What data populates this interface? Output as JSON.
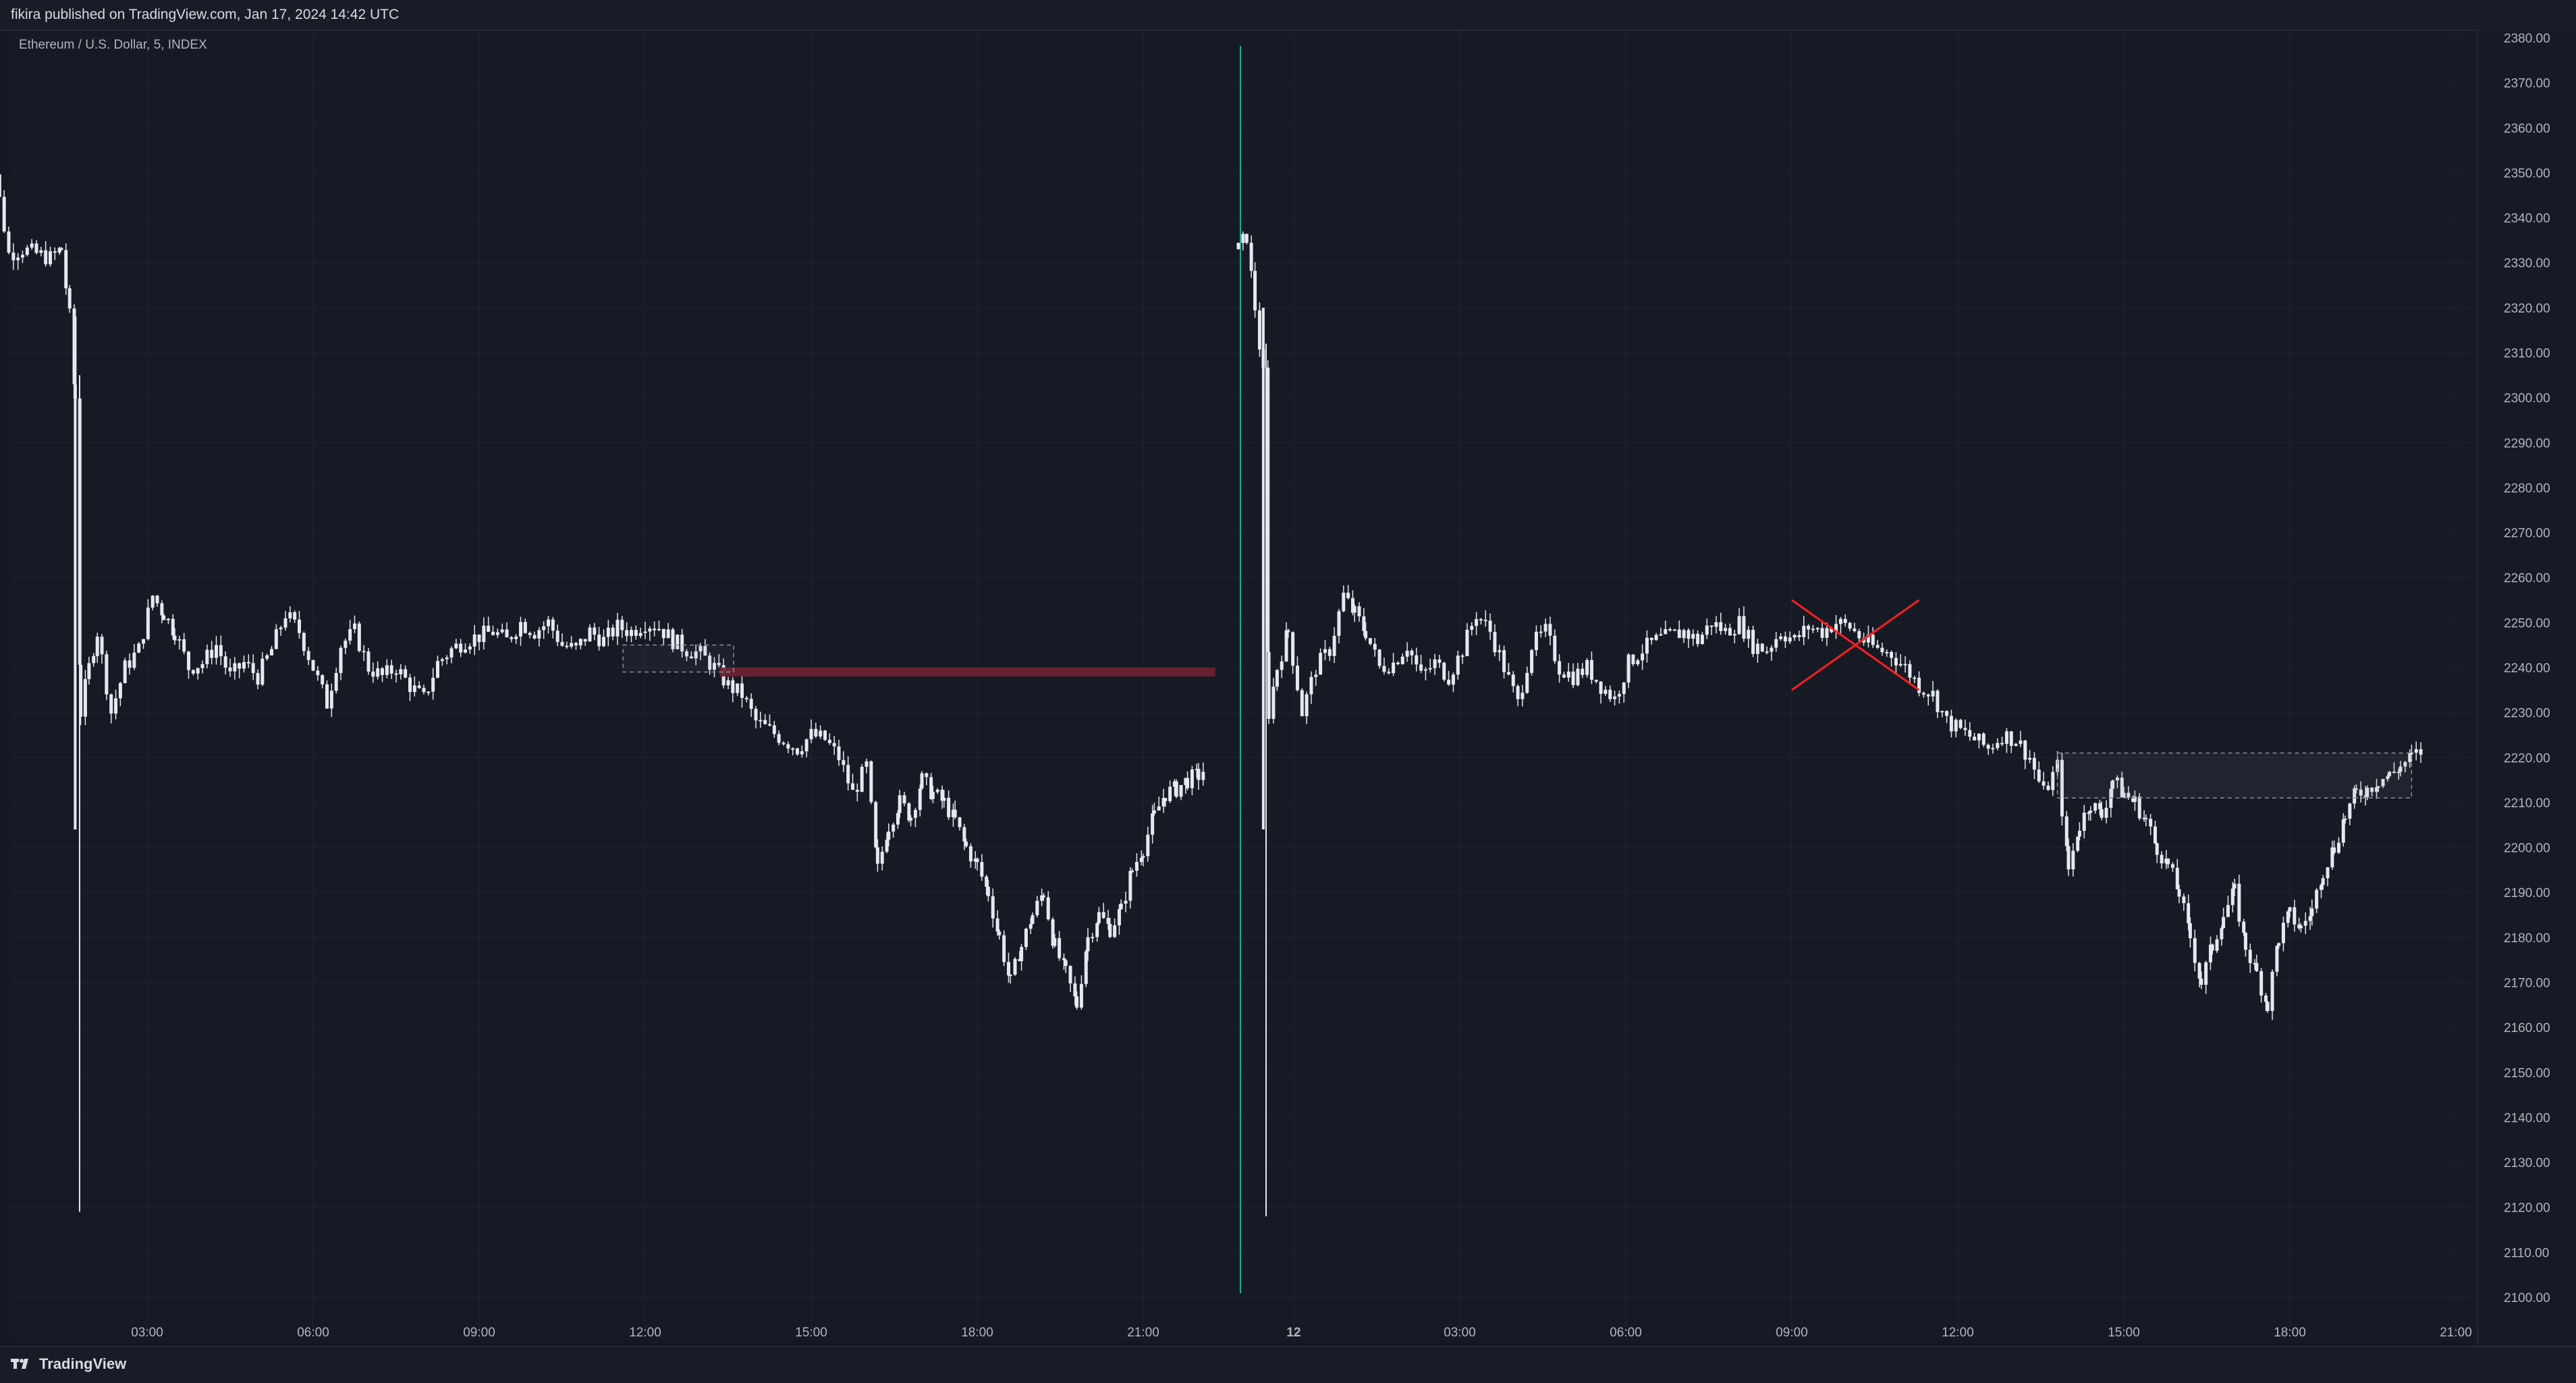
{
  "header": {
    "publish_text": "fikira published on TradingView.com, Jan 17, 2024 14:42 UTC"
  },
  "symbol": {
    "label": "Ethereum / U.S. Dollar, 5, INDEX"
  },
  "footer": {
    "brand": "TradingView"
  },
  "colors": {
    "background": "#161a25",
    "candle": "#e6e8ee",
    "grid": "#1f2430",
    "separator": "#22ab94",
    "zone": "#6b2230",
    "cross": "#ff1f1f",
    "box_border": "#8a8e99"
  },
  "chart_data": {
    "type": "candlestick",
    "title": "",
    "y_axis": {
      "min": 2100,
      "max": 2380,
      "ticks": [
        "2100.00",
        "2110.00",
        "2120.00",
        "2130.00",
        "2140.00",
        "2150.00",
        "2160.00",
        "2170.00",
        "2180.00",
        "2190.00",
        "2200.00",
        "2210.00",
        "2220.00",
        "2230.00",
        "2240.00",
        "2250.00",
        "2260.00",
        "2270.00",
        "2280.00",
        "2290.00",
        "2300.00",
        "2310.00",
        "2320.00",
        "2330.00",
        "2340.00",
        "2350.00",
        "2360.00",
        "2370.00",
        "2380.00"
      ]
    },
    "grid": true,
    "panels": [
      {
        "time_labels": [
          {
            "h": 3,
            "label": "03:00"
          },
          {
            "h": 6,
            "label": "06:00"
          },
          {
            "h": 9,
            "label": "09:00"
          },
          {
            "h": 12,
            "label": "12:00"
          },
          {
            "h": 15,
            "label": "15:00"
          },
          {
            "h": 18,
            "label": "18:00"
          },
          {
            "h": 21,
            "label": "21:00"
          }
        ],
        "series": [
          {
            "h": 0.0,
            "v": 2352
          },
          {
            "h": 0.25,
            "v": 2350
          },
          {
            "h": 0.5,
            "v": 2332
          },
          {
            "h": 0.75,
            "v": 2333
          },
          {
            "h": 1.0,
            "v": 2332
          },
          {
            "h": 1.25,
            "v": 2331
          },
          {
            "h": 1.45,
            "v": 2333
          },
          {
            "h": 1.6,
            "v": 2318
          },
          {
            "h": 1.7,
            "v": 2300
          },
          {
            "h": 1.8,
            "v": 2230
          },
          {
            "h": 1.95,
            "v": 2240
          },
          {
            "h": 2.1,
            "v": 2248
          },
          {
            "h": 2.35,
            "v": 2230
          },
          {
            "h": 2.6,
            "v": 2240
          },
          {
            "h": 2.85,
            "v": 2244
          },
          {
            "h": 3.1,
            "v": 2256
          },
          {
            "h": 3.3,
            "v": 2252
          },
          {
            "h": 3.5,
            "v": 2248
          },
          {
            "h": 3.75,
            "v": 2240
          },
          {
            "h": 4.0,
            "v": 2241
          },
          {
            "h": 4.25,
            "v": 2245
          },
          {
            "h": 4.5,
            "v": 2238
          },
          {
            "h": 4.75,
            "v": 2241
          },
          {
            "h": 5.0,
            "v": 2238
          },
          {
            "h": 5.25,
            "v": 2244
          },
          {
            "h": 5.5,
            "v": 2252
          },
          {
            "h": 5.75,
            "v": 2248
          },
          {
            "h": 6.0,
            "v": 2240
          },
          {
            "h": 6.25,
            "v": 2232
          },
          {
            "h": 6.5,
            "v": 2245
          },
          {
            "h": 6.75,
            "v": 2248
          },
          {
            "h": 7.0,
            "v": 2240
          },
          {
            "h": 7.25,
            "v": 2238
          },
          {
            "h": 7.5,
            "v": 2240
          },
          {
            "h": 7.75,
            "v": 2236
          },
          {
            "h": 8.0,
            "v": 2233
          },
          {
            "h": 8.25,
            "v": 2241
          },
          {
            "h": 8.5,
            "v": 2244
          },
          {
            "h": 8.75,
            "v": 2246
          },
          {
            "h": 9.0,
            "v": 2247
          },
          {
            "h": 9.25,
            "v": 2248
          },
          {
            "h": 9.5,
            "v": 2246
          },
          {
            "h": 9.75,
            "v": 2250
          },
          {
            "h": 10.0,
            "v": 2248
          },
          {
            "h": 10.25,
            "v": 2250
          },
          {
            "h": 10.5,
            "v": 2245
          },
          {
            "h": 10.75,
            "v": 2244
          },
          {
            "h": 11.0,
            "v": 2248
          },
          {
            "h": 11.25,
            "v": 2246
          },
          {
            "h": 11.5,
            "v": 2249
          },
          {
            "h": 11.75,
            "v": 2248
          },
          {
            "h": 12.0,
            "v": 2250
          },
          {
            "h": 12.25,
            "v": 2249
          },
          {
            "h": 12.5,
            "v": 2246
          },
          {
            "h": 12.75,
            "v": 2244
          },
          {
            "h": 13.0,
            "v": 2243
          },
          {
            "h": 13.25,
            "v": 2240
          },
          {
            "h": 13.5,
            "v": 2236
          },
          {
            "h": 13.75,
            "v": 2234
          },
          {
            "h": 14.0,
            "v": 2228
          },
          {
            "h": 14.25,
            "v": 2226
          },
          {
            "h": 14.5,
            "v": 2224
          },
          {
            "h": 14.75,
            "v": 2222
          },
          {
            "h": 15.0,
            "v": 2225
          },
          {
            "h": 15.25,
            "v": 2224
          },
          {
            "h": 15.5,
            "v": 2220
          },
          {
            "h": 15.75,
            "v": 2212
          },
          {
            "h": 16.0,
            "v": 2218
          },
          {
            "h": 16.2,
            "v": 2195
          },
          {
            "h": 16.4,
            "v": 2205
          },
          {
            "h": 16.6,
            "v": 2210
          },
          {
            "h": 16.8,
            "v": 2207
          },
          {
            "h": 17.0,
            "v": 2215
          },
          {
            "h": 17.2,
            "v": 2212
          },
          {
            "h": 17.4,
            "v": 2210
          },
          {
            "h": 17.6,
            "v": 2206
          },
          {
            "h": 17.8,
            "v": 2200
          },
          {
            "h": 18.0,
            "v": 2196
          },
          {
            "h": 18.2,
            "v": 2190
          },
          {
            "h": 18.4,
            "v": 2180
          },
          {
            "h": 18.6,
            "v": 2170
          },
          {
            "h": 18.8,
            "v": 2178
          },
          {
            "h": 19.0,
            "v": 2185
          },
          {
            "h": 19.2,
            "v": 2190
          },
          {
            "h": 19.4,
            "v": 2178
          },
          {
            "h": 19.6,
            "v": 2172
          },
          {
            "h": 19.8,
            "v": 2165
          },
          {
            "h": 20.0,
            "v": 2180
          },
          {
            "h": 20.2,
            "v": 2185
          },
          {
            "h": 20.4,
            "v": 2182
          },
          {
            "h": 20.6,
            "v": 2186
          },
          {
            "h": 20.8,
            "v": 2195
          },
          {
            "h": 21.0,
            "v": 2200
          },
          {
            "h": 21.2,
            "v": 2207
          },
          {
            "h": 21.4,
            "v": 2212
          },
          {
            "h": 21.6,
            "v": 2213
          },
          {
            "h": 21.8,
            "v": 2215
          },
          {
            "h": 22.0,
            "v": 2216
          },
          {
            "h": 22.15,
            "v": 2218
          }
        ],
        "annotations": {
          "zone": {
            "h_start": 13.35,
            "h_end": 22.3,
            "y_low": 2238,
            "y_high": 2240
          },
          "dashed_box": {
            "h_start": 11.6,
            "h_end": 13.6,
            "y_low": 2239,
            "y_high": 2245
          }
        }
      },
      {
        "time_labels": [
          {
            "h": 0,
            "label": "12",
            "bold": true
          },
          {
            "h": 3,
            "label": "03:00"
          },
          {
            "h": 6,
            "label": "06:00"
          },
          {
            "h": 9,
            "label": "09:00"
          },
          {
            "h": 12,
            "label": "12:00"
          },
          {
            "h": 15,
            "label": "15:00"
          },
          {
            "h": 18,
            "label": "18:00"
          },
          {
            "h": 21,
            "label": "21:00"
          }
        ],
        "series": [
          {
            "h": -1.0,
            "v": 2333
          },
          {
            "h": -0.85,
            "v": 2336
          },
          {
            "h": -0.7,
            "v": 2320
          },
          {
            "h": -0.55,
            "v": 2305
          },
          {
            "h": -0.45,
            "v": 2230
          },
          {
            "h": -0.3,
            "v": 2240
          },
          {
            "h": -0.1,
            "v": 2248
          },
          {
            "h": 0.15,
            "v": 2230
          },
          {
            "h": 0.4,
            "v": 2240
          },
          {
            "h": 0.65,
            "v": 2244
          },
          {
            "h": 0.9,
            "v": 2256
          },
          {
            "h": 1.1,
            "v": 2252
          },
          {
            "h": 1.3,
            "v": 2248
          },
          {
            "h": 1.55,
            "v": 2240
          },
          {
            "h": 1.8,
            "v": 2241
          },
          {
            "h": 2.05,
            "v": 2245
          },
          {
            "h": 2.3,
            "v": 2238
          },
          {
            "h": 2.55,
            "v": 2241
          },
          {
            "h": 2.8,
            "v": 2238
          },
          {
            "h": 3.05,
            "v": 2244
          },
          {
            "h": 3.3,
            "v": 2252
          },
          {
            "h": 3.55,
            "v": 2248
          },
          {
            "h": 3.8,
            "v": 2240
          },
          {
            "h": 4.05,
            "v": 2232
          },
          {
            "h": 4.3,
            "v": 2245
          },
          {
            "h": 4.55,
            "v": 2248
          },
          {
            "h": 4.8,
            "v": 2240
          },
          {
            "h": 5.05,
            "v": 2238
          },
          {
            "h": 5.3,
            "v": 2240
          },
          {
            "h": 5.55,
            "v": 2236
          },
          {
            "h": 5.8,
            "v": 2233
          },
          {
            "h": 6.05,
            "v": 2241
          },
          {
            "h": 6.3,
            "v": 2244
          },
          {
            "h": 6.55,
            "v": 2246
          },
          {
            "h": 6.8,
            "v": 2247
          },
          {
            "h": 7.05,
            "v": 2248
          },
          {
            "h": 7.3,
            "v": 2246
          },
          {
            "h": 7.55,
            "v": 2250
          },
          {
            "h": 7.8,
            "v": 2248
          },
          {
            "h": 8.05,
            "v": 2250
          },
          {
            "h": 8.3,
            "v": 2245
          },
          {
            "h": 8.55,
            "v": 2244
          },
          {
            "h": 8.8,
            "v": 2248
          },
          {
            "h": 9.05,
            "v": 2246
          },
          {
            "h": 9.3,
            "v": 2249
          },
          {
            "h": 9.55,
            "v": 2248
          },
          {
            "h": 9.8,
            "v": 2250
          },
          {
            "h": 10.05,
            "v": 2249
          },
          {
            "h": 10.3,
            "v": 2246
          },
          {
            "h": 10.55,
            "v": 2244
          },
          {
            "h": 10.8,
            "v": 2243
          },
          {
            "h": 11.05,
            "v": 2240
          },
          {
            "h": 11.3,
            "v": 2236
          },
          {
            "h": 11.55,
            "v": 2234
          },
          {
            "h": 11.8,
            "v": 2228
          },
          {
            "h": 12.05,
            "v": 2226
          },
          {
            "h": 12.3,
            "v": 2224
          },
          {
            "h": 12.55,
            "v": 2222
          },
          {
            "h": 12.8,
            "v": 2225
          },
          {
            "h": 13.05,
            "v": 2224
          },
          {
            "h": 13.3,
            "v": 2220
          },
          {
            "h": 13.55,
            "v": 2212
          },
          {
            "h": 13.8,
            "v": 2218
          },
          {
            "h": 14.0,
            "v": 2195
          },
          {
            "h": 14.2,
            "v": 2205
          },
          {
            "h": 14.4,
            "v": 2210
          },
          {
            "h": 14.6,
            "v": 2207
          },
          {
            "h": 14.8,
            "v": 2215
          },
          {
            "h": 15.0,
            "v": 2212
          },
          {
            "h": 15.2,
            "v": 2210
          },
          {
            "h": 15.4,
            "v": 2206
          },
          {
            "h": 15.6,
            "v": 2200
          },
          {
            "h": 15.8,
            "v": 2196
          },
          {
            "h": 16.0,
            "v": 2190
          },
          {
            "h": 16.2,
            "v": 2180
          },
          {
            "h": 16.4,
            "v": 2170
          },
          {
            "h": 16.6,
            "v": 2178
          },
          {
            "h": 16.8,
            "v": 2185
          },
          {
            "h": 17.0,
            "v": 2190
          },
          {
            "h": 17.2,
            "v": 2178
          },
          {
            "h": 17.4,
            "v": 2172
          },
          {
            "h": 17.6,
            "v": 2165
          },
          {
            "h": 17.8,
            "v": 2180
          },
          {
            "h": 18.0,
            "v": 2185
          },
          {
            "h": 18.2,
            "v": 2182
          },
          {
            "h": 18.4,
            "v": 2186
          },
          {
            "h": 18.6,
            "v": 2195
          },
          {
            "h": 18.8,
            "v": 2200
          },
          {
            "h": 19.0,
            "v": 2207
          },
          {
            "h": 19.2,
            "v": 2212
          },
          {
            "h": 19.4,
            "v": 2213
          },
          {
            "h": 19.6,
            "v": 2215
          },
          {
            "h": 19.8,
            "v": 2216
          },
          {
            "h": 20.0,
            "v": 2218
          },
          {
            "h": 20.2,
            "v": 2220
          },
          {
            "h": 20.45,
            "v": 2222
          }
        ],
        "annotations": {
          "cross": {
            "h_start": 9.0,
            "h_end": 11.3,
            "y_low": 2235,
            "y_high": 2255
          },
          "dashed_box": {
            "h_start": 13.8,
            "h_end": 20.2,
            "y_low": 2211,
            "y_high": 2221
          }
        }
      }
    ]
  }
}
